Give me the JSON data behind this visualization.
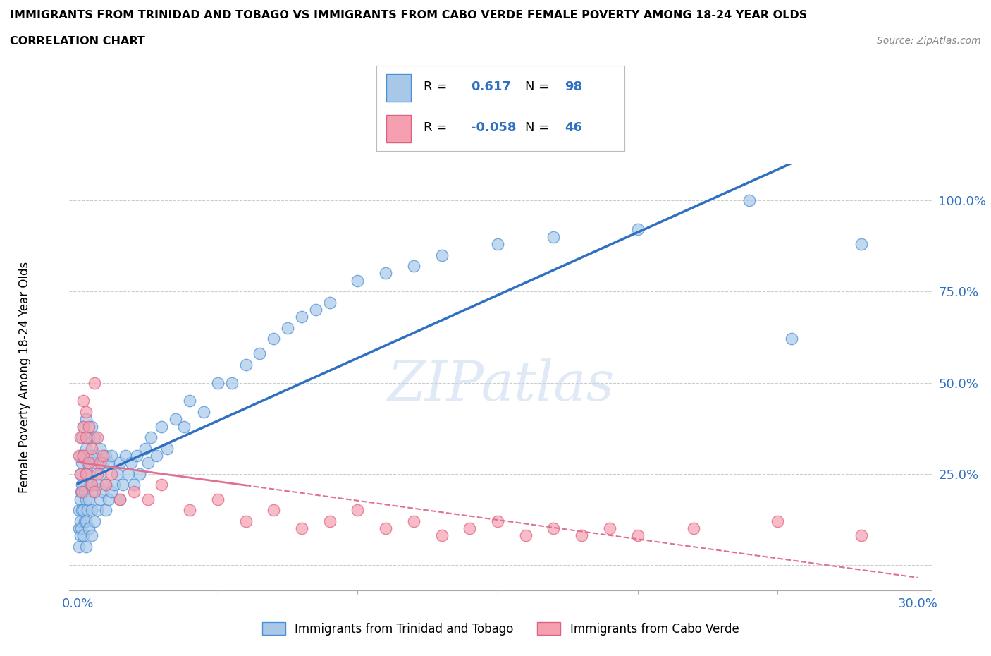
{
  "title_line1": "IMMIGRANTS FROM TRINIDAD AND TOBAGO VS IMMIGRANTS FROM CABO VERDE FEMALE POVERTY AMONG 18-24 YEAR OLDS",
  "title_line2": "CORRELATION CHART",
  "source": "Source: ZipAtlas.com",
  "ylabel": "Female Poverty Among 18-24 Year Olds",
  "watermark": "ZIPatlas",
  "xlim": [
    -0.003,
    0.305
  ],
  "ylim": [
    -0.07,
    1.1
  ],
  "xtick_positions": [
    0.0,
    0.05,
    0.1,
    0.15,
    0.2,
    0.25,
    0.3
  ],
  "xtick_labels": [
    "0.0%",
    "",
    "",
    "",
    "",
    "",
    "30.0%"
  ],
  "ytick_positions": [
    0.0,
    0.25,
    0.5,
    0.75,
    1.0
  ],
  "ytick_labels": [
    "",
    "25.0%",
    "50.0%",
    "75.0%",
    "100.0%"
  ],
  "blue_fill": "#a8c8e8",
  "blue_edge": "#4a90d9",
  "pink_fill": "#f4a0b0",
  "pink_edge": "#e06080",
  "blue_line_color": "#3070c0",
  "pink_line_color": "#e07090",
  "grid_color": "#cccccc",
  "background_color": "#ffffff",
  "R_blue": "0.617",
  "N_blue": "98",
  "R_pink": "-0.058",
  "N_pink": "46",
  "stat_color": "#3070c0",
  "legend_blue_label": "Immigrants from Trinidad and Tobago",
  "legend_pink_label": "Immigrants from Cabo Verde",
  "blue_scatter_x": [
    0.0005,
    0.0005,
    0.0005,
    0.0008,
    0.001,
    0.001,
    0.001,
    0.001,
    0.0012,
    0.0012,
    0.0015,
    0.0015,
    0.0015,
    0.0015,
    0.002,
    0.002,
    0.002,
    0.002,
    0.002,
    0.0025,
    0.0025,
    0.003,
    0.003,
    0.003,
    0.003,
    0.003,
    0.003,
    0.0035,
    0.0035,
    0.004,
    0.004,
    0.004,
    0.004,
    0.0045,
    0.005,
    0.005,
    0.005,
    0.005,
    0.005,
    0.006,
    0.006,
    0.006,
    0.006,
    0.007,
    0.007,
    0.007,
    0.008,
    0.008,
    0.008,
    0.009,
    0.009,
    0.01,
    0.01,
    0.01,
    0.011,
    0.011,
    0.012,
    0.012,
    0.013,
    0.014,
    0.015,
    0.015,
    0.016,
    0.017,
    0.018,
    0.019,
    0.02,
    0.021,
    0.022,
    0.024,
    0.025,
    0.026,
    0.028,
    0.03,
    0.032,
    0.035,
    0.038,
    0.04,
    0.045,
    0.05,
    0.055,
    0.06,
    0.065,
    0.07,
    0.075,
    0.08,
    0.085,
    0.09,
    0.1,
    0.11,
    0.12,
    0.13,
    0.15,
    0.17,
    0.2,
    0.24,
    0.255,
    0.28
  ],
  "blue_scatter_y": [
    0.05,
    0.1,
    0.15,
    0.08,
    0.12,
    0.18,
    0.25,
    0.3,
    0.1,
    0.2,
    0.15,
    0.22,
    0.28,
    0.35,
    0.08,
    0.15,
    0.22,
    0.3,
    0.38,
    0.12,
    0.2,
    0.05,
    0.12,
    0.18,
    0.25,
    0.32,
    0.4,
    0.15,
    0.28,
    0.1,
    0.18,
    0.25,
    0.35,
    0.22,
    0.08,
    0.15,
    0.22,
    0.3,
    0.38,
    0.12,
    0.2,
    0.28,
    0.35,
    0.15,
    0.22,
    0.3,
    0.18,
    0.25,
    0.32,
    0.2,
    0.28,
    0.15,
    0.22,
    0.3,
    0.18,
    0.28,
    0.2,
    0.3,
    0.22,
    0.25,
    0.18,
    0.28,
    0.22,
    0.3,
    0.25,
    0.28,
    0.22,
    0.3,
    0.25,
    0.32,
    0.28,
    0.35,
    0.3,
    0.38,
    0.32,
    0.4,
    0.38,
    0.45,
    0.42,
    0.5,
    0.5,
    0.55,
    0.58,
    0.62,
    0.65,
    0.68,
    0.7,
    0.72,
    0.78,
    0.8,
    0.82,
    0.85,
    0.88,
    0.9,
    0.92,
    1.0,
    0.62,
    0.88
  ],
  "pink_scatter_x": [
    0.0005,
    0.001,
    0.001,
    0.0015,
    0.002,
    0.002,
    0.002,
    0.003,
    0.003,
    0.003,
    0.004,
    0.004,
    0.005,
    0.005,
    0.006,
    0.006,
    0.007,
    0.007,
    0.008,
    0.009,
    0.01,
    0.012,
    0.015,
    0.02,
    0.025,
    0.03,
    0.04,
    0.05,
    0.06,
    0.07,
    0.08,
    0.09,
    0.1,
    0.11,
    0.12,
    0.13,
    0.14,
    0.15,
    0.16,
    0.17,
    0.18,
    0.19,
    0.2,
    0.22,
    0.25,
    0.28
  ],
  "pink_scatter_y": [
    0.3,
    0.25,
    0.35,
    0.2,
    0.3,
    0.38,
    0.45,
    0.25,
    0.35,
    0.42,
    0.28,
    0.38,
    0.22,
    0.32,
    0.2,
    0.5,
    0.25,
    0.35,
    0.28,
    0.3,
    0.22,
    0.25,
    0.18,
    0.2,
    0.18,
    0.22,
    0.15,
    0.18,
    0.12,
    0.15,
    0.1,
    0.12,
    0.15,
    0.1,
    0.12,
    0.08,
    0.1,
    0.12,
    0.08,
    0.1,
    0.08,
    0.1,
    0.08,
    0.1,
    0.12,
    0.08
  ]
}
